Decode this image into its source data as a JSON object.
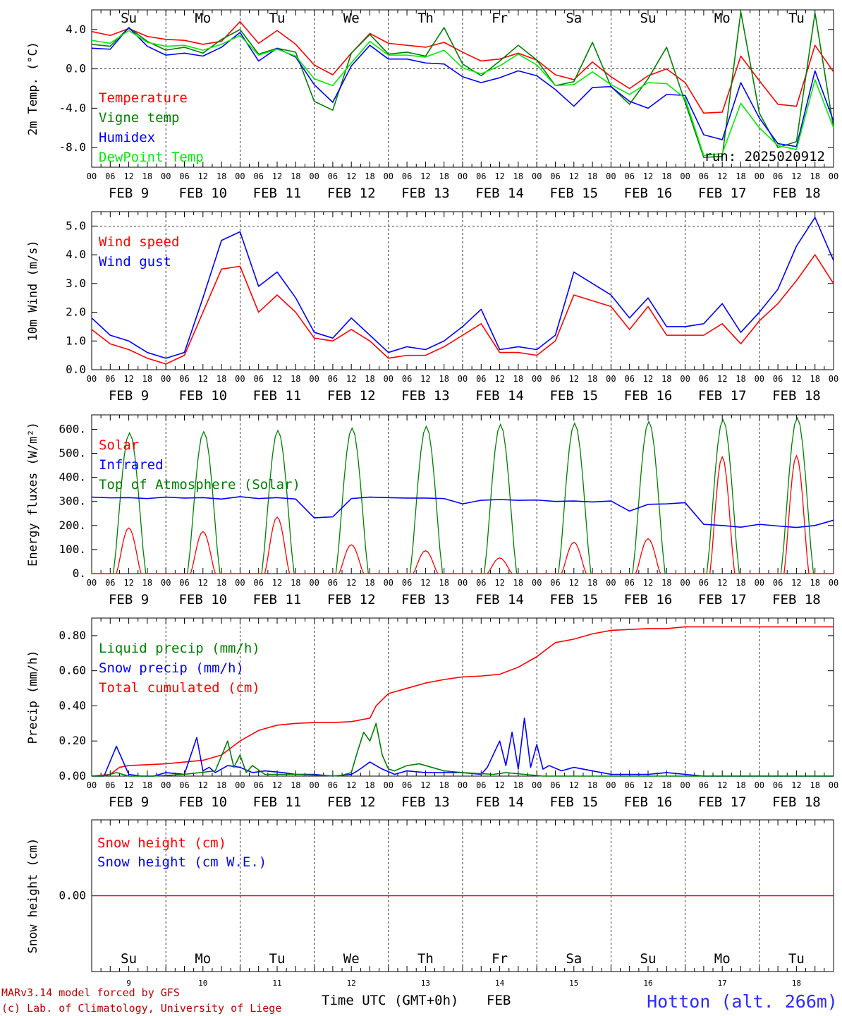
{
  "footer": {
    "credit_line1": "MARv3.14 model forced by GFS",
    "credit_line2": "(c) Lab. of Climatology, University of Liege",
    "xaxis_title": "Time UTC (GMT+0h)",
    "month": "FEB",
    "station": "Hotton (alt. 266m)",
    "run": "run: 2025020912"
  },
  "colors": {
    "red": "#ff0000",
    "green": "#008000",
    "blue": "#0000ff",
    "lightgreen": "#00ee00",
    "weekend": "#ff0000",
    "station": "#2b2bff"
  },
  "chart_data": [
    {
      "type": "line",
      "id": "temp",
      "ylabel": "2m Temp. (°C)",
      "ylim": [
        -10,
        6
      ],
      "yticks": [
        -8,
        -4,
        0,
        4
      ],
      "ytick_labels": [
        "-8.0",
        "-4.0",
        "0.0",
        "4.0"
      ],
      "ref_line": 0,
      "day_labels": [
        "Su",
        "Mo",
        "Tu",
        "We",
        "Th",
        "Fr",
        "Sa",
        "Su",
        "Mo",
        "Tu"
      ],
      "day_label_weekend": [
        true,
        false,
        false,
        false,
        false,
        false,
        true,
        true,
        false,
        false
      ],
      "day_label_position": "top",
      "legend": [
        "Temperature",
        "Vigne temp",
        "Humidex",
        "DewPoint Temp"
      ],
      "x_hours": [
        0,
        6,
        12,
        18,
        24,
        30,
        36,
        42,
        48,
        54,
        60,
        66,
        72,
        78,
        84,
        90,
        96,
        102,
        108,
        114,
        120,
        126,
        132,
        138,
        144,
        150,
        156,
        162,
        168,
        174,
        180,
        186,
        192,
        198,
        204,
        210,
        216,
        222,
        228,
        234,
        240
      ],
      "series": [
        {
          "name": "Temperature",
          "color": "red",
          "values": [
            3.8,
            3.4,
            4.1,
            3.3,
            3.0,
            2.9,
            2.5,
            2.8,
            4.8,
            2.6,
            3.9,
            2.5,
            0.4,
            -0.6,
            1.6,
            3.6,
            2.6,
            2.4,
            2.2,
            2.7,
            1.7,
            0.8,
            1.0,
            1.6,
            0.9,
            -0.6,
            -1.1,
            0.7,
            -0.8,
            -2.0,
            -0.7,
            0.0,
            -1.4,
            -4.5,
            -4.4,
            1.3,
            -1.2,
            -3.6,
            -3.8,
            2.4,
            -0.3
          ]
        },
        {
          "name": "Vigne temp",
          "color": "green",
          "values": [
            2.5,
            2.3,
            4.2,
            2.8,
            1.9,
            2.2,
            1.6,
            3.0,
            4.0,
            1.5,
            2.1,
            1.7,
            -3.3,
            -4.2,
            1.6,
            3.5,
            1.5,
            1.7,
            1.3,
            4.2,
            0.5,
            -0.7,
            0.8,
            2.4,
            0.9,
            -1.7,
            -1.3,
            2.7,
            -1.8,
            -3.6,
            -1.0,
            2.2,
            -3.4,
            -9.0,
            -8.9,
            5.8,
            -4.5,
            -8.0,
            -7.4,
            5.7,
            -6.0
          ]
        },
        {
          "name": "Humidex",
          "color": "blue",
          "values": [
            2.1,
            2.0,
            4.2,
            2.3,
            1.4,
            1.6,
            1.3,
            2.2,
            3.7,
            0.8,
            2.1,
            1.2,
            -1.6,
            -3.4,
            0.3,
            2.4,
            1.0,
            1.0,
            0.6,
            0.5,
            -0.8,
            -1.4,
            -0.9,
            -0.2,
            -0.7,
            -2.1,
            -3.8,
            -1.9,
            -1.8,
            -3.3,
            -4.0,
            -2.6,
            -2.7,
            -6.7,
            -7.2,
            -1.4,
            -5.0,
            -7.6,
            -7.9,
            -0.2,
            -5.3
          ]
        },
        {
          "name": "DewPoint Temp",
          "color": "lightgreen",
          "values": [
            2.9,
            2.6,
            3.9,
            2.7,
            2.3,
            2.4,
            1.9,
            2.5,
            3.4,
            1.4,
            2.0,
            1.3,
            -1.0,
            -1.7,
            0.6,
            2.8,
            1.4,
            1.4,
            1.2,
            1.9,
            0.1,
            -0.5,
            0.3,
            1.5,
            0.4,
            -1.7,
            -1.6,
            -0.3,
            -1.6,
            -2.6,
            -1.4,
            -1.5,
            -3.0,
            -8.8,
            -8.6,
            -3.5,
            -6.0,
            -7.8,
            -8.2,
            -1.1,
            -6.0
          ]
        }
      ]
    },
    {
      "type": "line",
      "id": "wind",
      "ylabel": "10m Wind (m/s)",
      "ylim": [
        0,
        5.5
      ],
      "yticks": [
        0,
        1,
        2,
        3,
        4,
        5
      ],
      "ytick_labels": [
        "0.0",
        "1.0",
        "2.0",
        "3.0",
        "4.0",
        "5.0"
      ],
      "ref_line": 5,
      "legend": [
        "Wind speed",
        "Wind gust"
      ],
      "x_hours": [
        0,
        6,
        12,
        18,
        24,
        30,
        36,
        42,
        48,
        54,
        60,
        66,
        72,
        78,
        84,
        90,
        96,
        102,
        108,
        114,
        120,
        126,
        132,
        138,
        144,
        150,
        156,
        162,
        168,
        174,
        180,
        186,
        192,
        198,
        204,
        210,
        216,
        222,
        228,
        234,
        240
      ],
      "series": [
        {
          "name": "Wind speed",
          "color": "red",
          "values": [
            1.4,
            0.9,
            0.7,
            0.4,
            0.2,
            0.5,
            2.0,
            3.5,
            3.6,
            2.0,
            2.6,
            2.0,
            1.1,
            1.0,
            1.4,
            1.0,
            0.4,
            0.5,
            0.5,
            0.8,
            1.2,
            1.6,
            0.6,
            0.6,
            0.5,
            1.0,
            2.6,
            2.4,
            2.2,
            1.4,
            2.2,
            1.2,
            1.2,
            1.2,
            1.6,
            0.9,
            1.7,
            2.3,
            3.1,
            4.0,
            3.0
          ]
        },
        {
          "name": "Wind gust",
          "color": "blue",
          "values": [
            1.8,
            1.2,
            1.0,
            0.6,
            0.4,
            0.6,
            2.5,
            4.5,
            4.8,
            2.9,
            3.4,
            2.5,
            1.3,
            1.1,
            1.8,
            1.2,
            0.6,
            0.8,
            0.7,
            1.0,
            1.5,
            2.1,
            0.7,
            0.8,
            0.7,
            1.2,
            3.4,
            3.0,
            2.6,
            1.8,
            2.5,
            1.5,
            1.5,
            1.6,
            2.3,
            1.3,
            2.0,
            2.8,
            4.3,
            5.3,
            3.8
          ]
        }
      ]
    },
    {
      "type": "line",
      "id": "energy",
      "ylabel": "Energy fluxes (W/m²)",
      "ylim": [
        0,
        660
      ],
      "yticks": [
        0,
        100,
        200,
        300,
        400,
        500,
        600
      ],
      "ytick_labels": [
        "0.",
        "100.",
        "200.",
        "300.",
        "400.",
        "500.",
        "600."
      ],
      "legend": [
        "Solar",
        "Infrared",
        "Top of Atmosphere (Solar)"
      ],
      "toa_peaks": [
        585,
        590,
        595,
        605,
        612,
        620,
        625,
        632,
        640,
        648
      ],
      "solar_peaks": [
        190,
        175,
        235,
        120,
        95,
        65,
        130,
        145,
        485,
        490
      ],
      "x_hours": [
        0,
        6,
        12,
        18,
        24,
        30,
        36,
        42,
        48,
        54,
        60,
        66,
        72,
        78,
        84,
        90,
        96,
        102,
        108,
        114,
        120,
        126,
        132,
        138,
        144,
        150,
        156,
        162,
        168,
        174,
        180,
        186,
        192,
        198,
        204,
        210,
        216,
        222,
        228,
        234,
        240
      ],
      "series": [
        {
          "name": "Infrared",
          "color": "blue",
          "values": [
            318,
            315,
            316,
            312,
            318,
            314,
            316,
            310,
            320,
            312,
            316,
            310,
            232,
            236,
            312,
            318,
            316,
            314,
            314,
            312,
            290,
            305,
            308,
            305,
            306,
            300,
            302,
            298,
            302,
            260,
            288,
            290,
            295,
            205,
            200,
            193,
            205,
            198,
            192,
            200,
            222
          ]
        }
      ]
    },
    {
      "type": "line",
      "id": "precip",
      "ylabel": "Precip (mm/h)",
      "ylim": [
        0,
        0.9
      ],
      "yticks": [
        0,
        0.2,
        0.4,
        0.6,
        0.8
      ],
      "ytick_labels": [
        "0.00",
        "0.20",
        "0.40",
        "0.60",
        "0.80"
      ],
      "legend": [
        "Liquid precip (mm/h)",
        "Snow precip (mm/h)",
        "Total cumulated (cm)"
      ],
      "series": [
        {
          "name": "Total cumulated (cm)",
          "color": "red",
          "x_hours": [
            0,
            6,
            9,
            12,
            18,
            24,
            30,
            36,
            42,
            48,
            52,
            54,
            60,
            66,
            72,
            78,
            84,
            90,
            92,
            96,
            102,
            108,
            114,
            120,
            126,
            132,
            138,
            144,
            150,
            156,
            162,
            168,
            174,
            180,
            186,
            192,
            198,
            204,
            210,
            216,
            222,
            228,
            234,
            240
          ],
          "values": [
            0.0,
            0.01,
            0.05,
            0.06,
            0.065,
            0.07,
            0.08,
            0.09,
            0.12,
            0.2,
            0.24,
            0.26,
            0.29,
            0.3,
            0.305,
            0.305,
            0.31,
            0.33,
            0.4,
            0.47,
            0.5,
            0.53,
            0.55,
            0.565,
            0.57,
            0.58,
            0.62,
            0.68,
            0.76,
            0.78,
            0.81,
            0.83,
            0.835,
            0.84,
            0.84,
            0.85,
            0.85,
            0.85,
            0.85,
            0.85,
            0.85,
            0.85,
            0.85,
            0.85
          ]
        },
        {
          "name": "Snow precip (mm/h)",
          "color": "blue",
          "x_hours": [
            0,
            4,
            8,
            10,
            12,
            16,
            20,
            24,
            30,
            34,
            36,
            38,
            40,
            44,
            48,
            52,
            56,
            62,
            66,
            72,
            78,
            84,
            86,
            90,
            94,
            98,
            102,
            108,
            114,
            120,
            126,
            128,
            132,
            134,
            136,
            138,
            140,
            142,
            144,
            146,
            148,
            152,
            156,
            162,
            168,
            174,
            180,
            186,
            192,
            198,
            204,
            240
          ],
          "values": [
            0,
            0,
            0.17,
            0.09,
            0.01,
            0,
            0,
            0.02,
            0.01,
            0.22,
            0.03,
            0.05,
            0.02,
            0.06,
            0.05,
            0.02,
            0.03,
            0.02,
            0.01,
            0.01,
            0,
            0.01,
            0.03,
            0.08,
            0.04,
            0.01,
            0.03,
            0.02,
            0.02,
            0.02,
            0.01,
            0.05,
            0.2,
            0.06,
            0.25,
            0.04,
            0.33,
            0.05,
            0.18,
            0.04,
            0.06,
            0.03,
            0.05,
            0.03,
            0.01,
            0.01,
            0.01,
            0.02,
            0.01,
            0,
            0,
            0
          ]
        },
        {
          "name": "Liquid precip (mm/h)",
          "color": "green",
          "x_hours": [
            0,
            4,
            8,
            12,
            20,
            30,
            40,
            44,
            46,
            48,
            50,
            52,
            56,
            66,
            80,
            84,
            86,
            88,
            90,
            92,
            94,
            96,
            98,
            102,
            106,
            110,
            114,
            120,
            130,
            134,
            140,
            146,
            160,
            240
          ],
          "values": [
            0,
            0,
            0.02,
            0,
            0,
            0.01,
            0.03,
            0.2,
            0.05,
            0.12,
            0.02,
            0.06,
            0.01,
            0.01,
            0,
            0.02,
            0.14,
            0.25,
            0.2,
            0.3,
            0.12,
            0.04,
            0.03,
            0.06,
            0.07,
            0.05,
            0.03,
            0.02,
            0.01,
            0.02,
            0.01,
            0,
            0,
            0
          ]
        }
      ]
    },
    {
      "type": "line",
      "id": "snow",
      "ylabel": "Snow height (cm)",
      "ylim": [
        -1,
        1
      ],
      "yticks": [
        0
      ],
      "ytick_labels": [
        "0.00"
      ],
      "legend": [
        "Snow height (cm)",
        "Snow height (cm W.E.)"
      ],
      "day_labels": [
        "Su",
        "Mo",
        "Tu",
        "We",
        "Th",
        "Fr",
        "Sa",
        "Su",
        "Mo",
        "Tu"
      ],
      "day_label_weekend": [
        true,
        false,
        false,
        false,
        false,
        false,
        true,
        true,
        false,
        false
      ],
      "day_numbers": [
        "9",
        "10",
        "11",
        "12",
        "13",
        "14",
        "15",
        "16",
        "17",
        "18"
      ],
      "day_label_position": "bottom",
      "series": [
        {
          "name": "Snow height (cm)",
          "color": "red",
          "x_hours": [
            0,
            240
          ],
          "values": [
            0,
            0
          ]
        }
      ]
    }
  ],
  "xaxis": {
    "hour_labels": [
      "00",
      "06",
      "12",
      "18"
    ],
    "end_label": "00",
    "date_labels": [
      "FEB  9",
      "FEB 10",
      "FEB 11",
      "FEB 12",
      "FEB 13",
      "FEB 14",
      "FEB 15",
      "FEB 16",
      "FEB 17",
      "FEB 18"
    ],
    "hours_per_day": 24,
    "days": 10
  }
}
